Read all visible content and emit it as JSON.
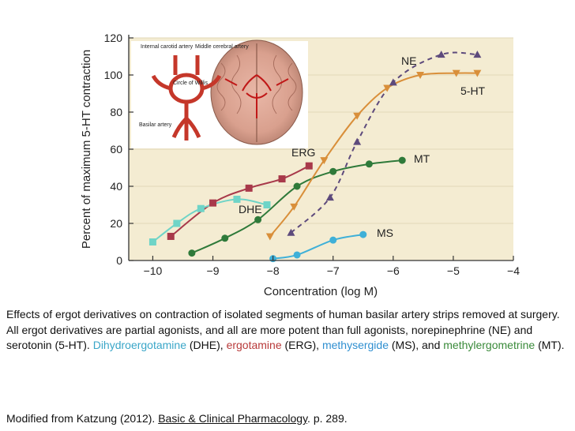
{
  "chart_data": {
    "type": "line",
    "title": "",
    "xlabel": "Concentration (log M)",
    "ylabel": "Percent of maximum 5-HT contraction",
    "xlim": [
      -10.4,
      -4
    ],
    "ylim": [
      0,
      120
    ],
    "x_ticks": [
      -10,
      -9,
      -8,
      -7,
      -6,
      -5,
      -4
    ],
    "x_tick_labels": [
      "−10",
      "−9",
      "−8",
      "−7",
      "−6",
      "−5",
      "−4"
    ],
    "y_ticks": [
      0,
      20,
      40,
      60,
      80,
      100,
      120
    ],
    "y_tick_labels": [
      "0",
      "20",
      "40",
      "60",
      "80",
      "100",
      "120"
    ],
    "background": "#f4ecd2",
    "series": [
      {
        "name": "ERG",
        "color": "#a8394a",
        "marker": "square",
        "dashed": false,
        "x": [
          -9.7,
          -9.0,
          -8.4,
          -7.85,
          -7.4
        ],
        "y": [
          13,
          31,
          39,
          44,
          51
        ]
      },
      {
        "name": "DHE",
        "color": "#6fd4c7",
        "marker": "square",
        "dashed": false,
        "x": [
          -10.0,
          -9.6,
          -9.2,
          -8.6,
          -8.1
        ],
        "y": [
          10,
          20,
          28,
          33,
          30
        ]
      },
      {
        "name": "MT",
        "color": "#2f7a3a",
        "marker": "circle",
        "dashed": false,
        "x": [
          -9.35,
          -8.8,
          -8.25,
          -7.6,
          -7.0,
          -6.4,
          -5.85
        ],
        "y": [
          4,
          12,
          22,
          40,
          48,
          52,
          54
        ]
      },
      {
        "name": "5-HT",
        "color": "#d98f3a",
        "marker": "triangle-down",
        "dashed": false,
        "x": [
          -8.05,
          -7.65,
          -7.15,
          -6.6,
          -6.1,
          -5.55,
          -4.95,
          -4.6
        ],
        "y": [
          13,
          29,
          54,
          78,
          93,
          100,
          101,
          101
        ]
      },
      {
        "name": "NE",
        "color": "#5d4a7c",
        "marker": "triangle-up",
        "dashed": true,
        "x": [
          -7.7,
          -7.05,
          -6.6,
          -6.0,
          -5.2,
          -4.6
        ],
        "y": [
          15,
          34,
          64,
          96,
          111,
          111
        ]
      },
      {
        "name": "MS",
        "color": "#3fb0d8",
        "marker": "circle",
        "dashed": false,
        "x": [
          -8.0,
          -7.6,
          -7.0,
          -6.5
        ],
        "y": [
          1,
          3,
          11,
          14
        ]
      }
    ],
    "series_labels": [
      "ERG",
      "DHE",
      "MT",
      "5-HT",
      "NE",
      "MS"
    ],
    "inset_labels": [
      "Internal carotid artery",
      "Middle cerebral artery",
      "Circle of Willis",
      "Basilar artery"
    ]
  },
  "caption": {
    "line1": "Effects of ergot derivatives on contraction of isolated segments of human basilar artery strips removed at surgery. All ergot derivatives are partial agonists, and all are more potent than full agonists, norepinephrine (NE) and serotonin (5-HT). ",
    "dhe": "Dihydroergotamine",
    "after_dhe": " (DHE), ",
    "erg": "ergotamine",
    "after_erg": " (ERG), ",
    "ms": "methysergide",
    "after_ms": " (MS), and ",
    "mt": "methylergometrine",
    "after_mt": " (MT).",
    "colors": {
      "dhe": "#3aa6c8",
      "erg": "#b83a3a",
      "ms": "#2f8fd0",
      "mt": "#3a8a3a"
    }
  },
  "source": {
    "prefix": "Modified from Katzung (2012). ",
    "book": "Basic & Clinical Pharmacology",
    "suffix": ". p. 289."
  }
}
